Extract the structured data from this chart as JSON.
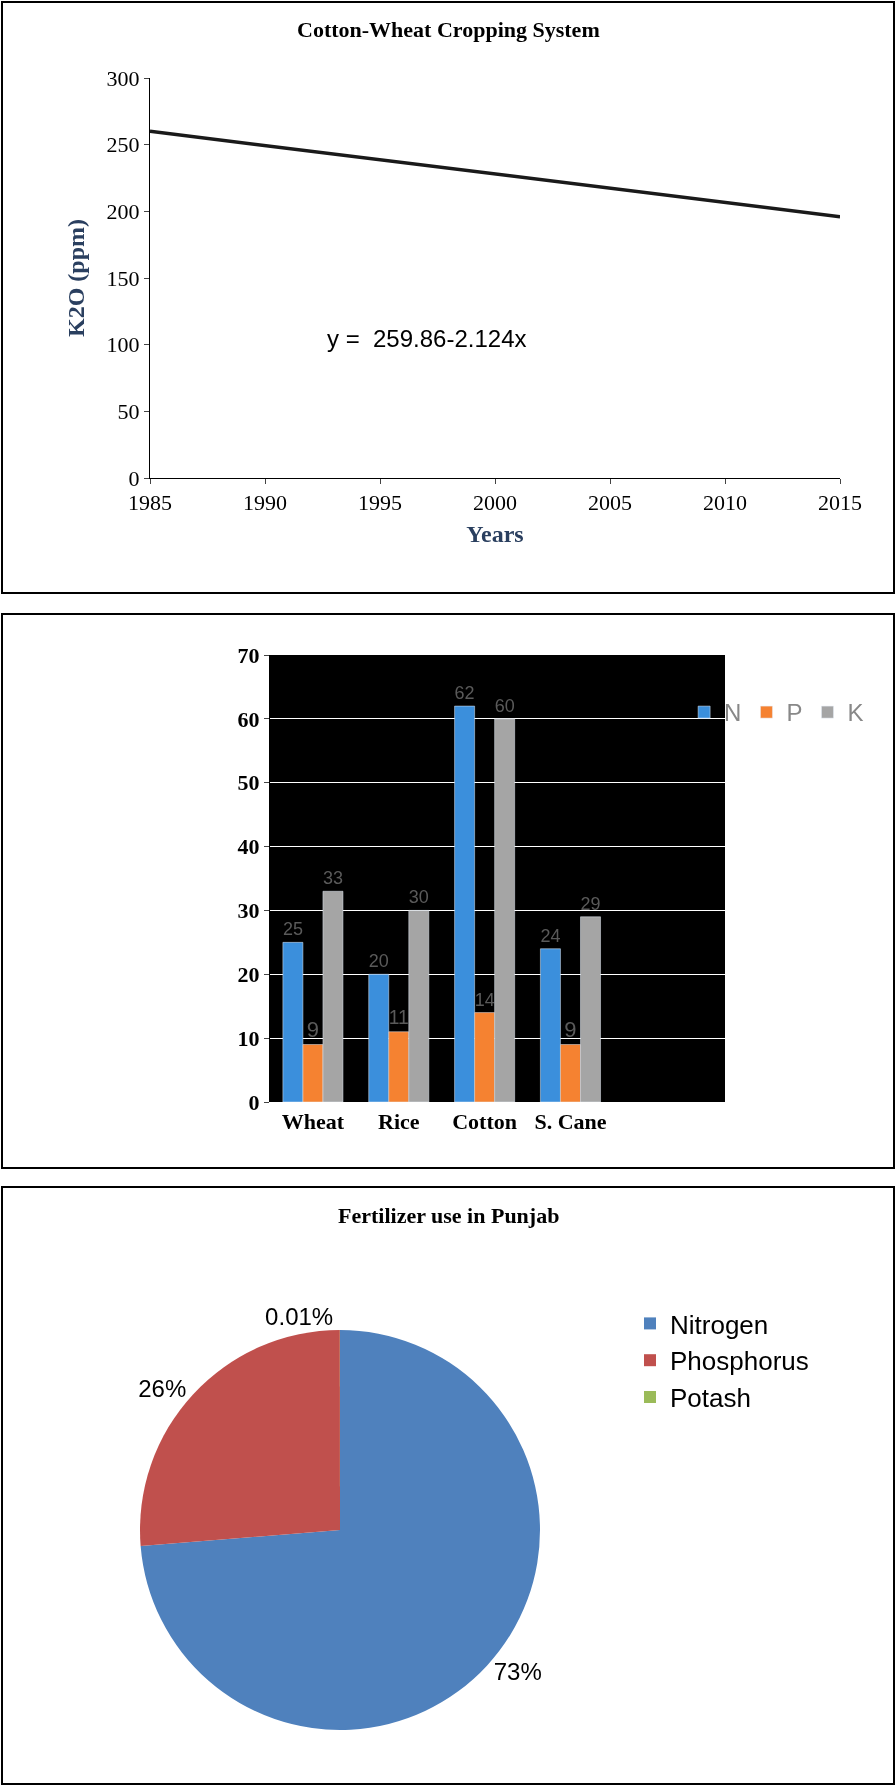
{
  "chart_data": [
    {
      "type": "line",
      "title": "Cotton-Wheat Cropping System",
      "xlabel": "Years",
      "ylabel": "K2O (ppm)",
      "x": [
        1985,
        2015
      ],
      "series": [
        {
          "color": "#1a1a1a",
          "values": [
            260,
            196
          ]
        }
      ],
      "xlim": [
        1985,
        2015
      ],
      "xticks": [
        1985,
        1990,
        1995,
        2000,
        2005,
        2010,
        2015
      ],
      "ylim": [
        0,
        300
      ],
      "yticks": [
        0,
        50,
        100,
        150,
        200,
        250,
        300
      ],
      "annotations": [
        "y =  259.86-2.124x"
      ],
      "grid": false,
      "legend": false,
      "marker": "none",
      "line_style": "solid"
    },
    {
      "type": "bar",
      "categories": [
        "Wheat",
        "Rice",
        "Cotton",
        "S. Cane"
      ],
      "series": [
        {
          "name": "N",
          "color": "#3b8fdc",
          "values": [
            25,
            20,
            62,
            24
          ]
        },
        {
          "name": "P",
          "color": "#f58231",
          "values": [
            9,
            11,
            14,
            9
          ]
        },
        {
          "name": "K",
          "color": "#a5a5a5",
          "values": [
            33,
            30,
            60,
            29
          ]
        }
      ],
      "ylim": [
        0,
        70
      ],
      "yticks": [
        0,
        10,
        20,
        30,
        40,
        50,
        60,
        70
      ],
      "data_labels": true,
      "grid": "y",
      "legend": "top right"
    },
    {
      "type": "pie",
      "title": "Fertilizer use in Punjab",
      "categories": [
        "Nitrogen",
        "Phosphorus",
        "Potash"
      ],
      "values": [
        73,
        26,
        0.01
      ],
      "colors": [
        "#4f81bd",
        "#c0504d",
        "#9bbb59"
      ],
      "value_labels": [
        "73%",
        "26%",
        "0.01%"
      ],
      "legend": "right"
    }
  ]
}
